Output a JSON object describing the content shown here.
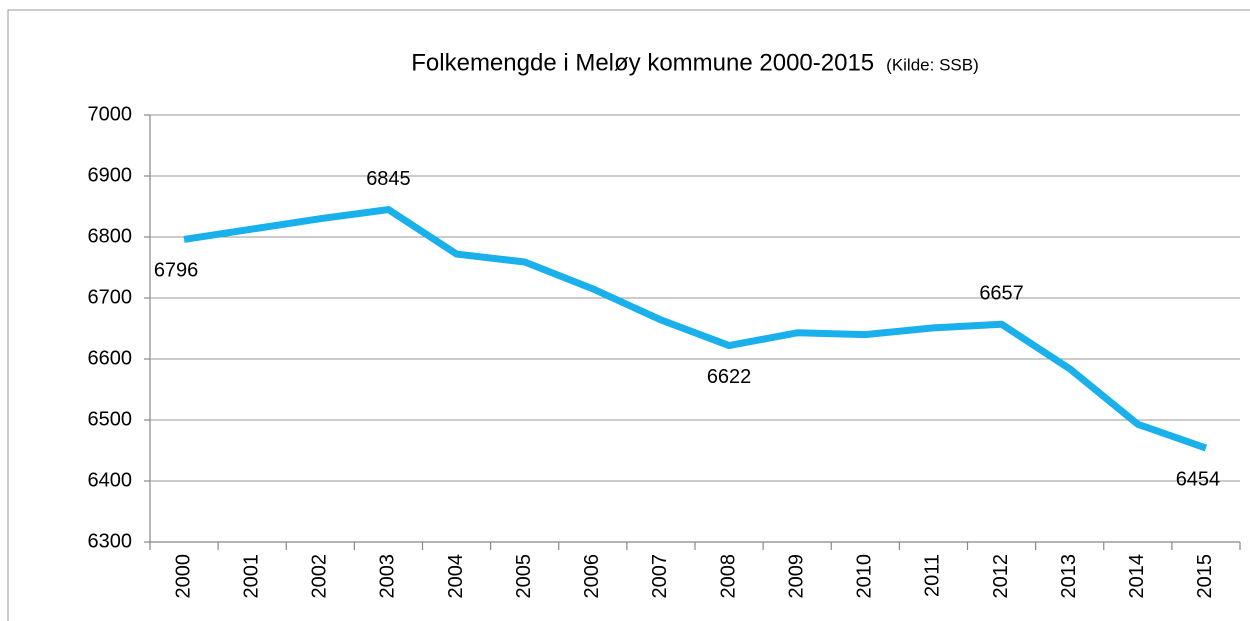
{
  "chart_data": {
    "type": "line",
    "title": "Folkemengde i Meløy kommune 2000-2015",
    "subtitle": "(Kilde: SSB)",
    "categories": [
      "2000",
      "2001",
      "2002",
      "2003",
      "2004",
      "2005",
      "2006",
      "2007",
      "2008",
      "2009",
      "2010",
      "2011",
      "2012",
      "2013",
      "2014",
      "2015"
    ],
    "series": [
      {
        "name": "Folkemengde",
        "color": "#1ab0ec",
        "values": [
          6796,
          6813,
          6830,
          6845,
          6772,
          6759,
          6715,
          6664,
          6622,
          6643,
          6640,
          6651,
          6657,
          6584,
          6493,
          6454
        ],
        "value_labels": [
          "6796",
          null,
          null,
          "6845",
          null,
          null,
          null,
          null,
          "6622",
          null,
          null,
          null,
          "6657",
          null,
          null,
          "6454"
        ]
      }
    ],
    "ylim": [
      6300,
      7000
    ],
    "yticks": [
      6300,
      6400,
      6500,
      6600,
      6700,
      6800,
      6900,
      7000
    ],
    "grid": true
  }
}
